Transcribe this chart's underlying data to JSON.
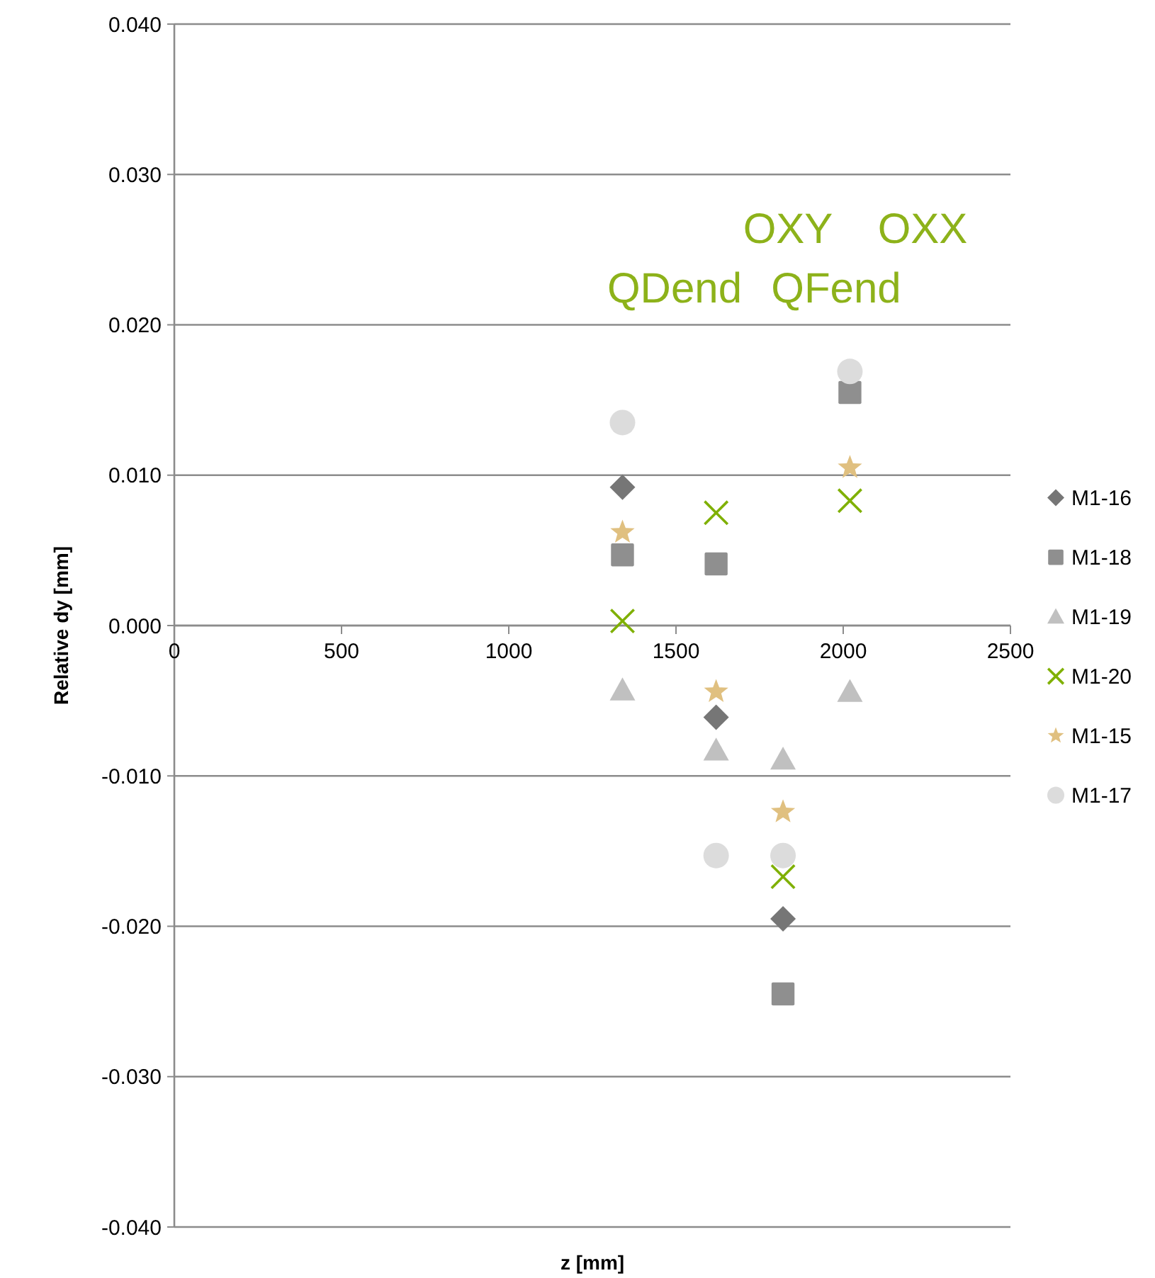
{
  "chart_data": {
    "type": "scatter",
    "xlabel": "z [mm]",
    "ylabel": "Relative dy [mm]",
    "xlim": [
      0,
      2500
    ],
    "xticks": [
      0,
      500,
      1000,
      1500,
      2000,
      2500
    ],
    "ylim": [
      -0.04,
      0.04
    ],
    "yticks": [
      {
        "value": -0.04,
        "label": "-0.040"
      },
      {
        "value": -0.03,
        "label": "-0.030"
      },
      {
        "value": -0.02,
        "label": "-0.020"
      },
      {
        "value": -0.01,
        "label": "-0.010"
      },
      {
        "value": 0,
        "label": "0.000"
      },
      {
        "value": 0.01,
        "label": "0.010"
      },
      {
        "value": 0.02,
        "label": "0.020"
      },
      {
        "value": 0.03,
        "label": "0.030"
      },
      {
        "value": 0.04,
        "label": "0.040"
      }
    ],
    "grid": "y",
    "legend": "right",
    "x": [
      1340,
      1620,
      1820,
      2020
    ],
    "series": [
      {
        "name": "M1-16",
        "color": "#767676",
        "marker": "diamond",
        "values": [
          0.0092,
          -0.0061,
          -0.0195,
          null
        ]
      },
      {
        "name": "M1-18",
        "color": "#8f8f8f",
        "marker": "square",
        "values": [
          0.0047,
          0.0041,
          -0.0245,
          0.0155
        ]
      },
      {
        "name": "M1-19",
        "color": "#c0c0c0",
        "marker": "triangle",
        "values": [
          -0.0043,
          -0.0083,
          -0.0089,
          -0.0044
        ]
      },
      {
        "name": "M1-20",
        "color": "#7fb000",
        "marker": "cross",
        "values": [
          0.0003,
          0.0075,
          -0.0167,
          0.0083
        ]
      },
      {
        "name": "M1-15",
        "color": "#e0c080",
        "marker": "star",
        "values": [
          0.0062,
          -0.0044,
          -0.0124,
          0.0105
        ]
      },
      {
        "name": "M1-17",
        "color": "#dcdcdc",
        "marker": "circle",
        "values": [
          0.0135,
          -0.0153,
          -0.0153,
          0.0169
        ]
      }
    ],
    "annotations": [
      "QDend",
      "OXY",
      "QFend",
      "OXX"
    ]
  }
}
